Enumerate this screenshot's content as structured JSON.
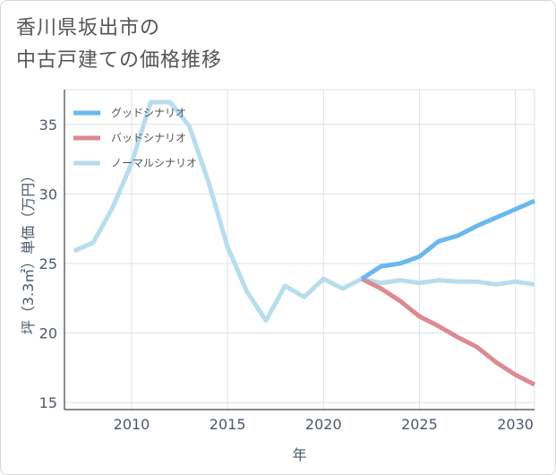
{
  "title_line1": "香川県坂出市の",
  "title_line2": "中古戸建ての価格推移",
  "chart_data": {
    "type": "line",
    "xlabel": "年",
    "ylabel": "坪（3.3㎡）単価（万円）",
    "xlim": [
      2006.5,
      2031
    ],
    "ylim": [
      14.5,
      37.5
    ],
    "xticks": [
      2010,
      2015,
      2020,
      2025,
      2030
    ],
    "yticks": [
      15,
      20,
      25,
      30,
      35
    ],
    "grid": true,
    "legend_position": "top-left",
    "series": [
      {
        "name": "グッドシナリオ",
        "color": "#6ab8ee",
        "x": [
          2022,
          2023,
          2024,
          2025,
          2026,
          2027,
          2028,
          2029,
          2030,
          2031
        ],
        "values": [
          23.9,
          24.8,
          25.0,
          25.5,
          26.6,
          27.0,
          27.7,
          28.3,
          28.9,
          29.5
        ]
      },
      {
        "name": "バッドシナリオ",
        "color": "#dd8a92",
        "x": [
          2022,
          2023,
          2024,
          2025,
          2026,
          2027,
          2028,
          2029,
          2030,
          2031
        ],
        "values": [
          23.9,
          23.2,
          22.3,
          21.2,
          20.5,
          19.7,
          19.0,
          17.9,
          17.0,
          16.3
        ]
      },
      {
        "name": "ノーマルシナリオ",
        "color": "#b8dded",
        "x": [
          2007,
          2008,
          2009,
          2010,
          2011,
          2012,
          2013,
          2014,
          2015,
          2016,
          2017,
          2018,
          2019,
          2020,
          2021,
          2022,
          2023,
          2024,
          2025,
          2026,
          2027,
          2028,
          2029,
          2030,
          2031
        ],
        "values": [
          25.9,
          26.5,
          29.0,
          32.2,
          36.6,
          36.6,
          34.9,
          30.9,
          26.2,
          23.0,
          20.9,
          23.4,
          22.6,
          23.9,
          23.2,
          23.9,
          23.6,
          23.8,
          23.6,
          23.8,
          23.7,
          23.7,
          23.5,
          23.7,
          23.5
        ]
      }
    ]
  }
}
